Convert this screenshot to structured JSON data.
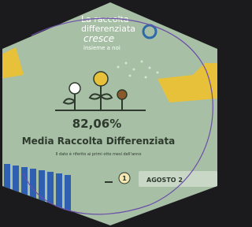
{
  "header": {
    "lines": [
      "La raccolta",
      "differenziata",
      "cresce",
      "insieme a noi"
    ]
  },
  "stat": {
    "value": "82,06%",
    "label": "Media Raccolta Differenziata",
    "note": "Il dato è riferito ai primi otto mesi dell'anno"
  },
  "badge": {
    "rank": "1",
    "month": "AGOSTO 2"
  }
}
